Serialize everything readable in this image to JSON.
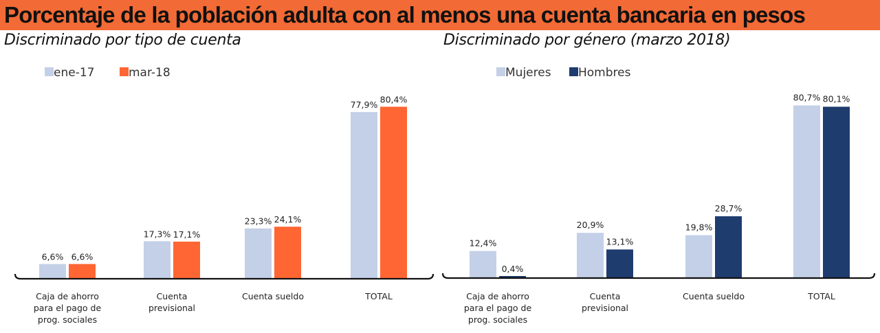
{
  "header": {
    "title": "Porcentaje de la población adulta con al menos una cuenta bancaria en pesos"
  },
  "colors": {
    "banner": "#f26a35",
    "light_blue": "#c3d0e7",
    "orange": "#ff6633",
    "dark_blue": "#1f3c6e"
  },
  "chart_data": [
    {
      "type": "bar",
      "title": "Discriminado por tipo de cuenta",
      "categories": [
        [
          "Caja de ahorro",
          "para el pago de",
          "prog. sociales"
        ],
        [
          "Cuenta",
          "previsional"
        ],
        [
          "Cuenta sueldo"
        ],
        [
          "TOTAL"
        ]
      ],
      "series": [
        {
          "name": "ene-17",
          "color": "#c3d0e7",
          "values": [
            6.6,
            17.3,
            23.3,
            77.9
          ],
          "labels": [
            "6,6%",
            "17,3%",
            "23,3%",
            "77,9%"
          ]
        },
        {
          "name": "mar-18",
          "color": "#ff6633",
          "values": [
            6.6,
            17.1,
            24.1,
            80.4
          ],
          "labels": [
            "6,6%",
            "17,1%",
            "24,1%",
            "80,4%"
          ]
        }
      ],
      "ylim": [
        0,
        90
      ],
      "legend": "top-left",
      "grid": false
    },
    {
      "type": "bar",
      "title": "Discriminado por género (marzo 2018)",
      "categories": [
        [
          "Caja de ahorro",
          "para el pago de",
          "prog. sociales"
        ],
        [
          "Cuenta",
          "previsional"
        ],
        [
          "Cuenta sueldo"
        ],
        [
          "TOTAL"
        ]
      ],
      "series": [
        {
          "name": "Mujeres",
          "color": "#c3d0e7",
          "values": [
            12.4,
            20.9,
            19.8,
            80.7
          ],
          "labels": [
            "12,4%",
            "20,9%",
            "19,8%",
            "80,7%"
          ]
        },
        {
          "name": "Hombres",
          "color": "#1f3c6e",
          "values": [
            0.4,
            13.1,
            28.7,
            80.1
          ],
          "labels": [
            "0,4%",
            "13,1%",
            "28,7%",
            "80,1%"
          ]
        }
      ],
      "ylim": [
        0,
        90
      ],
      "legend": "top-left",
      "grid": false
    }
  ]
}
